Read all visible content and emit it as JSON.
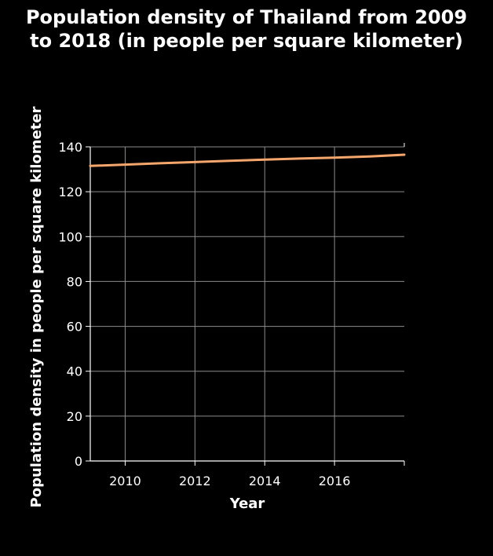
{
  "colors": {
    "background": "#000000",
    "text": "#ffffff",
    "grid": "#8c8c8c",
    "axis": "#ffffff",
    "series": "#f5a66c"
  },
  "chart_data": {
    "type": "line",
    "title": [
      "Population density of Thailand from 2009",
      "to 2018 (in people per square kilometer)"
    ],
    "xlabel": "Year",
    "ylabel": "Population density in people per square kilometer",
    "x": [
      2009,
      2010,
      2011,
      2012,
      2013,
      2014,
      2015,
      2016,
      2017,
      2018
    ],
    "series": [
      {
        "values": [
          131.5,
          132.1,
          132.7,
          133.2,
          133.8,
          134.3,
          134.8,
          135.2,
          135.7,
          136.5
        ]
      }
    ],
    "xlim": [
      2009,
      2018
    ],
    "ylim": [
      0,
      140
    ],
    "xticks": [
      2010,
      2012,
      2014,
      2016
    ],
    "yticks": [
      0,
      20,
      40,
      60,
      80,
      100,
      120,
      140
    ],
    "grid": true,
    "legend": false
  }
}
